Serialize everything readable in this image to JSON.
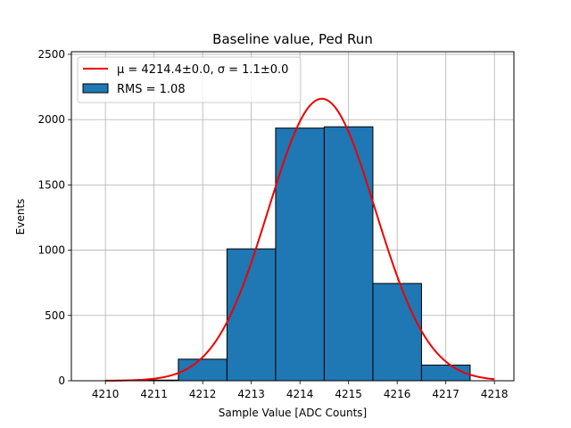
{
  "chart_data": {
    "type": "bar",
    "subtype": "histogram_with_gaussian_fit",
    "title": "Baseline value, Ped Run",
    "xlabel": "Sample Value [ADC Counts]",
    "ylabel": "Events",
    "xlim": [
      4209.3,
      4218.4
    ],
    "ylim": [
      0,
      2520
    ],
    "x_ticks": [
      4210,
      4211,
      4212,
      4213,
      4214,
      4215,
      4216,
      4217,
      4218
    ],
    "y_ticks": [
      0,
      500,
      1000,
      1500,
      2000,
      2500
    ],
    "grid": true,
    "bins": [
      {
        "left": 4209.5,
        "right": 4210.5,
        "value": 0
      },
      {
        "left": 4210.5,
        "right": 4211.5,
        "value": 5
      },
      {
        "left": 4211.5,
        "right": 4212.5,
        "value": 165
      },
      {
        "left": 4212.5,
        "right": 4213.5,
        "value": 1010
      },
      {
        "left": 4213.5,
        "right": 4214.5,
        "value": 1935
      },
      {
        "left": 4214.5,
        "right": 4215.5,
        "value": 1945
      },
      {
        "left": 4215.5,
        "right": 4216.5,
        "value": 745
      },
      {
        "left": 4216.5,
        "right": 4217.5,
        "value": 120
      }
    ],
    "fit": {
      "model": "gaussian",
      "mu": 4214.45,
      "sigma": 1.1,
      "amplitude": 2160,
      "x_range": [
        4210,
        4218
      ],
      "color": "#ee0000"
    },
    "bar_color": "#1f77b4",
    "bar_edge_color": "#000000",
    "legend": {
      "placement": "top-left",
      "fit_label": "μ = 4214.4±0.0, σ = 1.1±0.0",
      "hist_label": "RMS = 1.08"
    }
  }
}
